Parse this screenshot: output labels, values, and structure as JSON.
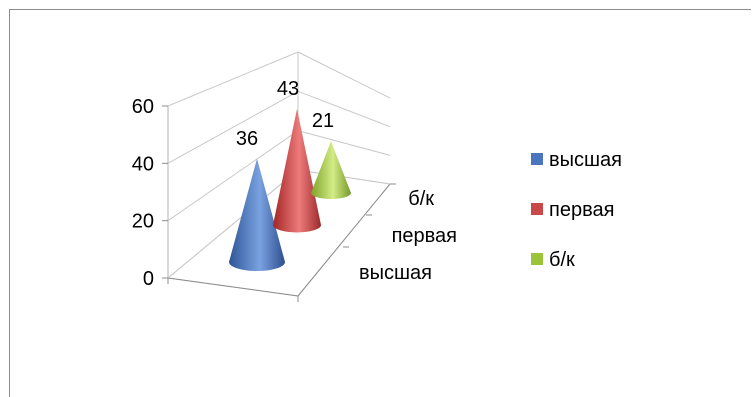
{
  "chart_data": {
    "type": "bar",
    "style": "3d-cone",
    "categories": [
      "высшая",
      "первая",
      "б/к"
    ],
    "values": [
      36,
      43,
      21
    ],
    "ylim": [
      0,
      60
    ],
    "yticks": [
      "0",
      "20",
      "40",
      "60"
    ],
    "data_labels": [
      "36",
      "43",
      "21"
    ],
    "grid": true,
    "legend": {
      "placement": "right",
      "entries": [
        "высшая",
        "первая",
        "б/к"
      ]
    },
    "colors": [
      "#4a76c0",
      "#c94848",
      "#9cc43a"
    ]
  }
}
